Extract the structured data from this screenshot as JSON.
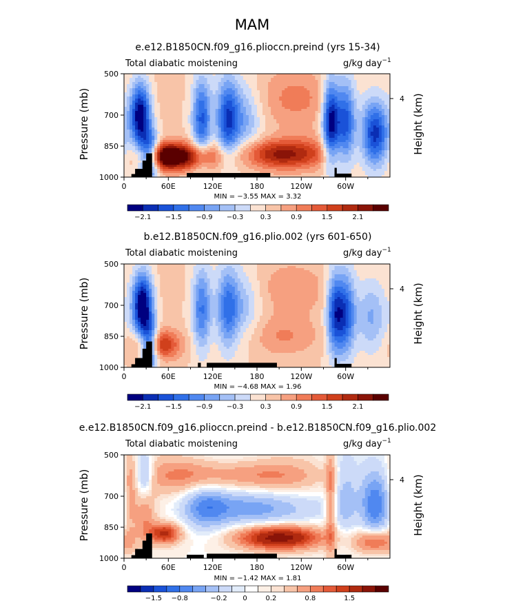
{
  "figure_title": "MAM",
  "chart_data": [
    {
      "type": "heatmap",
      "title": "e.e12.B1850CN.f09_g16.plioccn.preind (yrs 15-34)",
      "left_label": "Total diabatic moistening",
      "units": "g/kg day",
      "units_exp": "−1",
      "ylabel": "Pressure (mb)",
      "ylabel_right": "Height (km)",
      "y_ticks": [
        "500",
        "700",
        "850",
        "1000"
      ],
      "y_tick_values": [
        500,
        700,
        850,
        1000
      ],
      "y_right_ticks": [
        "4"
      ],
      "x_ticks": [
        "0",
        "60E",
        "120E",
        "180",
        "120W",
        "60W"
      ],
      "x_tick_values": [
        0,
        60,
        120,
        180,
        240,
        300
      ],
      "xlim": [
        0,
        360
      ],
      "ylim": [
        1000,
        500
      ],
      "stats": "MIN =   −3.55   MAX =   3.32",
      "min": -3.55,
      "max": 3.32,
      "colorbar_labels": [
        "−2.1",
        "−1.5",
        "−0.9",
        "−0.3",
        "0.3",
        "0.9",
        "1.5",
        "2.1"
      ],
      "levels": [
        -2.4,
        -2.1,
        -1.8,
        -1.5,
        -1.2,
        -0.9,
        -0.6,
        -0.3,
        0,
        0.3,
        0.6,
        0.9,
        1.2,
        1.5,
        1.8,
        2.1,
        2.4
      ],
      "palette": [
        "#000080",
        "#0a2eb4",
        "#1a52d8",
        "#3070e8",
        "#5088f0",
        "#78a4f4",
        "#a4c0f6",
        "#ccdaf8",
        "#fbe2d2",
        "#f8c4a8",
        "#f6a080",
        "#f07c58",
        "#e45a38",
        "#d0401c",
        "#b02a10",
        "#8a1408",
        "#5a0000"
      ],
      "features": [
        {
          "x": 22,
          "y": 700,
          "sx": 10,
          "sy": 110,
          "a": -2.8
        },
        {
          "x": 35,
          "y": 900,
          "sx": 9,
          "sy": 80,
          "a": -2.5
        },
        {
          "x": 55,
          "y": 900,
          "sx": 22,
          "sy": 45,
          "a": 2.6
        },
        {
          "x": 95,
          "y": 900,
          "sx": 30,
          "sy": 45,
          "a": 1.4
        },
        {
          "x": 105,
          "y": 720,
          "sx": 9,
          "sy": 140,
          "a": -1.8
        },
        {
          "x": 140,
          "y": 720,
          "sx": 10,
          "sy": 140,
          "a": -1.6
        },
        {
          "x": 160,
          "y": 720,
          "sx": 18,
          "sy": 120,
          "a": -1.0
        },
        {
          "x": 210,
          "y": 890,
          "sx": 35,
          "sy": 50,
          "a": 1.8
        },
        {
          "x": 235,
          "y": 620,
          "sx": 40,
          "sy": 100,
          "a": 0.6
        },
        {
          "x": 280,
          "y": 730,
          "sx": 8,
          "sy": 140,
          "a": -2.6
        },
        {
          "x": 300,
          "y": 730,
          "sx": 9,
          "sy": 140,
          "a": -1.9
        },
        {
          "x": 340,
          "y": 790,
          "sx": 13,
          "sy": 110,
          "a": -2.2
        },
        {
          "x": 255,
          "y": 880,
          "sx": 25,
          "sy": 60,
          "a": 0.5
        }
      ],
      "topography": [
        {
          "x0": 10,
          "x1": 18,
          "p": 985
        },
        {
          "x0": 15,
          "x1": 28,
          "p": 960
        },
        {
          "x0": 25,
          "x1": 33,
          "p": 920
        },
        {
          "x0": 30,
          "x1": 38,
          "p": 885
        },
        {
          "x0": 85,
          "x1": 198,
          "p": 980
        },
        {
          "x0": 285,
          "x1": 288,
          "p": 955
        },
        {
          "x0": 285,
          "x1": 308,
          "p": 983
        }
      ]
    },
    {
      "type": "heatmap",
      "title": "b.e12.B1850CN.f09_g16.plio.002 (yrs 601-650)",
      "left_label": "Total diabatic moistening",
      "units": "g/kg day",
      "units_exp": "−1",
      "ylabel": "Pressure (mb)",
      "ylabel_right": "Height (km)",
      "y_ticks": [
        "500",
        "700",
        "850",
        "1000"
      ],
      "y_tick_values": [
        500,
        700,
        850,
        1000
      ],
      "y_right_ticks": [
        "4"
      ],
      "x_ticks": [
        "0",
        "60E",
        "120E",
        "180",
        "120W",
        "60W"
      ],
      "x_tick_values": [
        0,
        60,
        120,
        180,
        240,
        300
      ],
      "xlim": [
        0,
        360
      ],
      "ylim": [
        1000,
        500
      ],
      "stats": "MIN =   −4.68   MAX =   1.96",
      "min": -4.68,
      "max": 1.96,
      "colorbar_labels": [
        "−2.1",
        "−1.5",
        "−0.9",
        "−0.3",
        "0.3",
        "0.9",
        "1.5",
        "2.1"
      ],
      "levels": [
        -2.4,
        -2.1,
        -1.8,
        -1.5,
        -1.2,
        -0.9,
        -0.6,
        -0.3,
        0,
        0.3,
        0.6,
        0.9,
        1.2,
        1.5,
        1.8,
        2.1,
        2.4
      ],
      "palette": [
        "#000080",
        "#0a2eb4",
        "#1a52d8",
        "#3070e8",
        "#5088f0",
        "#78a4f4",
        "#a4c0f6",
        "#ccdaf8",
        "#fbe2d2",
        "#f8c4a8",
        "#f6a080",
        "#f07c58",
        "#e45a38",
        "#d0401c",
        "#b02a10",
        "#8a1408",
        "#5a0000"
      ],
      "features": [
        {
          "x": 25,
          "y": 700,
          "sx": 10,
          "sy": 110,
          "a": -3.0
        },
        {
          "x": 35,
          "y": 900,
          "sx": 8,
          "sy": 80,
          "a": -2.4
        },
        {
          "x": 45,
          "y": 890,
          "sx": 22,
          "sy": 50,
          "a": 1.7
        },
        {
          "x": 105,
          "y": 720,
          "sx": 9,
          "sy": 140,
          "a": -1.5
        },
        {
          "x": 140,
          "y": 720,
          "sx": 10,
          "sy": 140,
          "a": -1.3
        },
        {
          "x": 160,
          "y": 700,
          "sx": 18,
          "sy": 120,
          "a": -0.8
        },
        {
          "x": 215,
          "y": 850,
          "sx": 35,
          "sy": 70,
          "a": 0.6
        },
        {
          "x": 285,
          "y": 740,
          "sx": 8,
          "sy": 140,
          "a": -1.9
        },
        {
          "x": 300,
          "y": 740,
          "sx": 9,
          "sy": 140,
          "a": -1.8
        },
        {
          "x": 335,
          "y": 760,
          "sx": 15,
          "sy": 120,
          "a": -0.9
        },
        {
          "x": 230,
          "y": 620,
          "sx": 50,
          "sy": 90,
          "a": 0.4
        }
      ],
      "topography": [
        {
          "x0": 10,
          "x1": 18,
          "p": 985
        },
        {
          "x0": 15,
          "x1": 28,
          "p": 955
        },
        {
          "x0": 25,
          "x1": 33,
          "p": 910
        },
        {
          "x0": 30,
          "x1": 38,
          "p": 875
        },
        {
          "x0": 100,
          "x1": 104,
          "p": 978
        },
        {
          "x0": 112,
          "x1": 207,
          "p": 978
        },
        {
          "x0": 285,
          "x1": 288,
          "p": 955
        },
        {
          "x0": 285,
          "x1": 308,
          "p": 983
        }
      ]
    },
    {
      "type": "heatmap",
      "title": "e.e12.B1850CN.f09_g16.plioccn.preind - b.e12.B1850CN.f09_g16.plio.002",
      "left_label": "Total diabatic moistening",
      "units": "g/kg day",
      "units_exp": "−1",
      "ylabel": "Pressure (mb)",
      "ylabel_right": "Height (km)",
      "y_ticks": [
        "500",
        "700",
        "850",
        "1000"
      ],
      "y_tick_values": [
        500,
        700,
        850,
        1000
      ],
      "y_right_ticks": [
        "4"
      ],
      "x_ticks": [
        "0",
        "60E",
        "120E",
        "180",
        "120W",
        "60W"
      ],
      "x_tick_values": [
        0,
        60,
        120,
        180,
        240,
        300
      ],
      "xlim": [
        0,
        360
      ],
      "ylim": [
        1000,
        500
      ],
      "stats": "MIN =   −1.42   MAX =   1.81",
      "min": -1.42,
      "max": 1.81,
      "colorbar_labels": [
        "−1.5",
        "−0.8",
        "−0.2",
        "0",
        "0.2",
        "0.8",
        "1.5"
      ],
      "levels": [
        -2.0,
        -1.5,
        -1.2,
        -1.0,
        -0.8,
        -0.6,
        -0.4,
        -0.2,
        -0.1,
        0,
        0.1,
        0.2,
        0.4,
        0.6,
        0.8,
        1.0,
        1.2,
        1.5,
        2.0
      ],
      "palette": [
        "#000080",
        "#0a2eb4",
        "#1a52d8",
        "#3070e8",
        "#5088f0",
        "#78a4f4",
        "#a4c0f6",
        "#ccdaf8",
        "#e2ecfa",
        "#ffffff",
        "#fdf0e6",
        "#fbe2d2",
        "#f8c4a8",
        "#f6a080",
        "#f07c58",
        "#e45a38",
        "#d0401c",
        "#b02a10",
        "#8a1408",
        "#5a0000"
      ],
      "features": [
        {
          "x": 8,
          "y": 700,
          "sx": 6,
          "sy": 150,
          "a": 0.5
        },
        {
          "x": 28,
          "y": 600,
          "sx": 8,
          "sy": 80,
          "a": -0.8
        },
        {
          "x": 28,
          "y": 780,
          "sx": 10,
          "sy": 90,
          "a": 0.6
        },
        {
          "x": 55,
          "y": 880,
          "sx": 15,
          "sy": 35,
          "a": 1.3
        },
        {
          "x": 80,
          "y": 600,
          "sx": 40,
          "sy": 60,
          "a": 0.5
        },
        {
          "x": 180,
          "y": 600,
          "sx": 60,
          "sy": 50,
          "a": 0.6
        },
        {
          "x": 180,
          "y": 760,
          "sx": 60,
          "sy": 60,
          "a": -0.7
        },
        {
          "x": 210,
          "y": 900,
          "sx": 40,
          "sy": 40,
          "a": 1.7
        },
        {
          "x": 280,
          "y": 720,
          "sx": 5,
          "sy": 200,
          "a": 0.7
        },
        {
          "x": 300,
          "y": 700,
          "sx": 10,
          "sy": 140,
          "a": -0.4
        },
        {
          "x": 340,
          "y": 740,
          "sx": 14,
          "sy": 120,
          "a": -0.9
        },
        {
          "x": 340,
          "y": 920,
          "sx": 20,
          "sy": 40,
          "a": 1.0
        },
        {
          "x": 110,
          "y": 750,
          "sx": 20,
          "sy": 80,
          "a": -0.6
        }
      ],
      "topography": [
        {
          "x0": 10,
          "x1": 18,
          "p": 985
        },
        {
          "x0": 15,
          "x1": 28,
          "p": 955
        },
        {
          "x0": 25,
          "x1": 33,
          "p": 915
        },
        {
          "x0": 30,
          "x1": 38,
          "p": 880
        },
        {
          "x0": 85,
          "x1": 108,
          "p": 983
        },
        {
          "x0": 112,
          "x1": 207,
          "p": 978
        },
        {
          "x0": 285,
          "x1": 288,
          "p": 955
        },
        {
          "x0": 285,
          "x1": 308,
          "p": 983
        }
      ]
    }
  ]
}
